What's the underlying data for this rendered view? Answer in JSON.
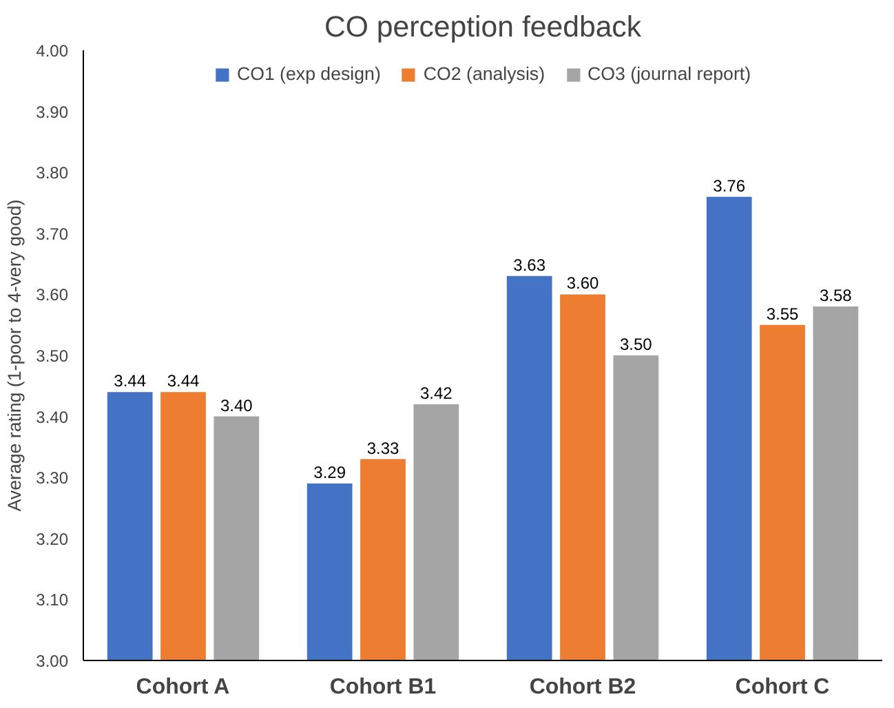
{
  "chart_data": {
    "type": "bar",
    "title": "CO perception feedback",
    "ylabel": "Average rating (1-poor to 4-very good)",
    "categories": [
      "Cohort A",
      "Cohort B1",
      "Cohort B2",
      "Cohort C"
    ],
    "series": [
      {
        "name": "CO1 (exp design)",
        "color": "#4472c4",
        "values": [
          3.44,
          3.29,
          3.63,
          3.76
        ],
        "value_labels": [
          "3.44",
          "3.29",
          "3.63",
          "3.76"
        ]
      },
      {
        "name": "CO2 (analysis)",
        "color": "#ed7d31",
        "values": [
          3.44,
          3.33,
          3.6,
          3.55
        ],
        "value_labels": [
          "3.44",
          "3.33",
          "3.60",
          "3.55"
        ]
      },
      {
        "name": "CO3 (journal report)",
        "color": "#a5a5a5",
        "values": [
          3.4,
          3.42,
          3.5,
          3.58
        ],
        "value_labels": [
          "3.40",
          "3.42",
          "3.50",
          "3.58"
        ]
      }
    ],
    "ylim": [
      3.0,
      4.0
    ],
    "yticks": [
      {
        "value": 3.0,
        "label": "3.00"
      },
      {
        "value": 3.1,
        "label": "3.10"
      },
      {
        "value": 3.2,
        "label": "3.20"
      },
      {
        "value": 3.3,
        "label": "3.30"
      },
      {
        "value": 3.4,
        "label": "3.40"
      },
      {
        "value": 3.5,
        "label": "3.50"
      },
      {
        "value": 3.6,
        "label": "3.60"
      },
      {
        "value": 3.7,
        "label": "3.70"
      },
      {
        "value": 3.8,
        "label": "3.80"
      },
      {
        "value": 3.9,
        "label": "3.90"
      },
      {
        "value": 4.0,
        "label": "4.00"
      }
    ],
    "grid": false,
    "legend": "top"
  }
}
